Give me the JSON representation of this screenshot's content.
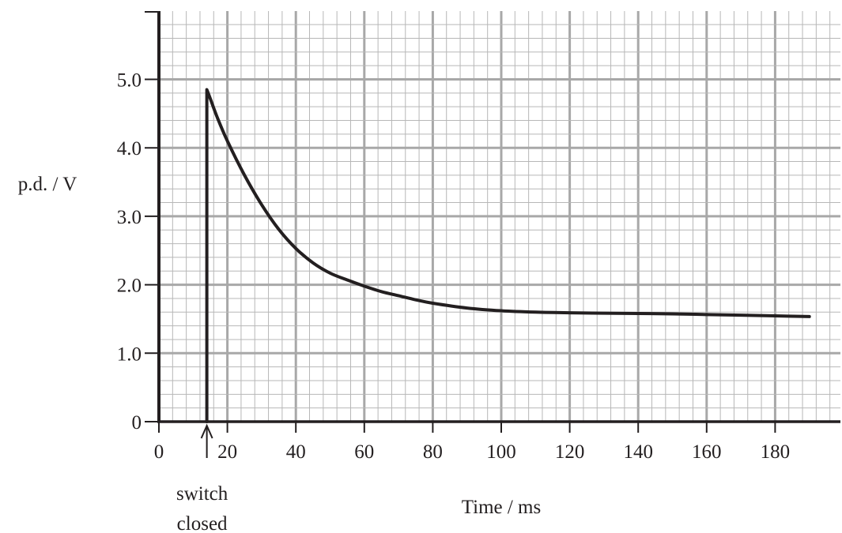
{
  "chart_data": {
    "type": "line",
    "xlabel": "Time / ms",
    "ylabel": "p.d. / V",
    "xlim": [
      0,
      197
    ],
    "ylim": [
      0,
      6
    ],
    "x_ticks": [
      0,
      20,
      40,
      60,
      80,
      100,
      120,
      140,
      160,
      180
    ],
    "x_tick_labels": [
      "0",
      "20",
      "40",
      "60",
      "80",
      "100",
      "120",
      "140",
      "160",
      "180"
    ],
    "y_ticks": [
      0,
      1,
      2,
      3,
      4,
      5
    ],
    "y_tick_labels": [
      "0",
      "1.0",
      "2.0",
      "3.0",
      "4.0",
      "5.0"
    ],
    "grid": true,
    "grid_minor_x": 4,
    "grid_minor_y": 0.2,
    "series": [
      {
        "x": [
          14,
          14,
          15,
          17,
          20,
          25,
          30,
          35,
          40,
          45,
          50,
          55,
          60,
          65,
          70,
          75,
          80,
          90,
          100,
          110,
          120,
          130,
          140,
          150,
          160,
          170,
          180,
          190
        ],
        "y": [
          0,
          4.85,
          4.72,
          4.45,
          4.1,
          3.6,
          3.17,
          2.81,
          2.53,
          2.32,
          2.17,
          2.07,
          1.98,
          1.9,
          1.84,
          1.78,
          1.73,
          1.66,
          1.62,
          1.6,
          1.59,
          1.585,
          1.58,
          1.575,
          1.565,
          1.555,
          1.545,
          1.535
        ]
      }
    ],
    "annotations": [
      {
        "text_lines": [
          "switch",
          "closed"
        ],
        "x": 14,
        "arrow": "up"
      }
    ]
  }
}
